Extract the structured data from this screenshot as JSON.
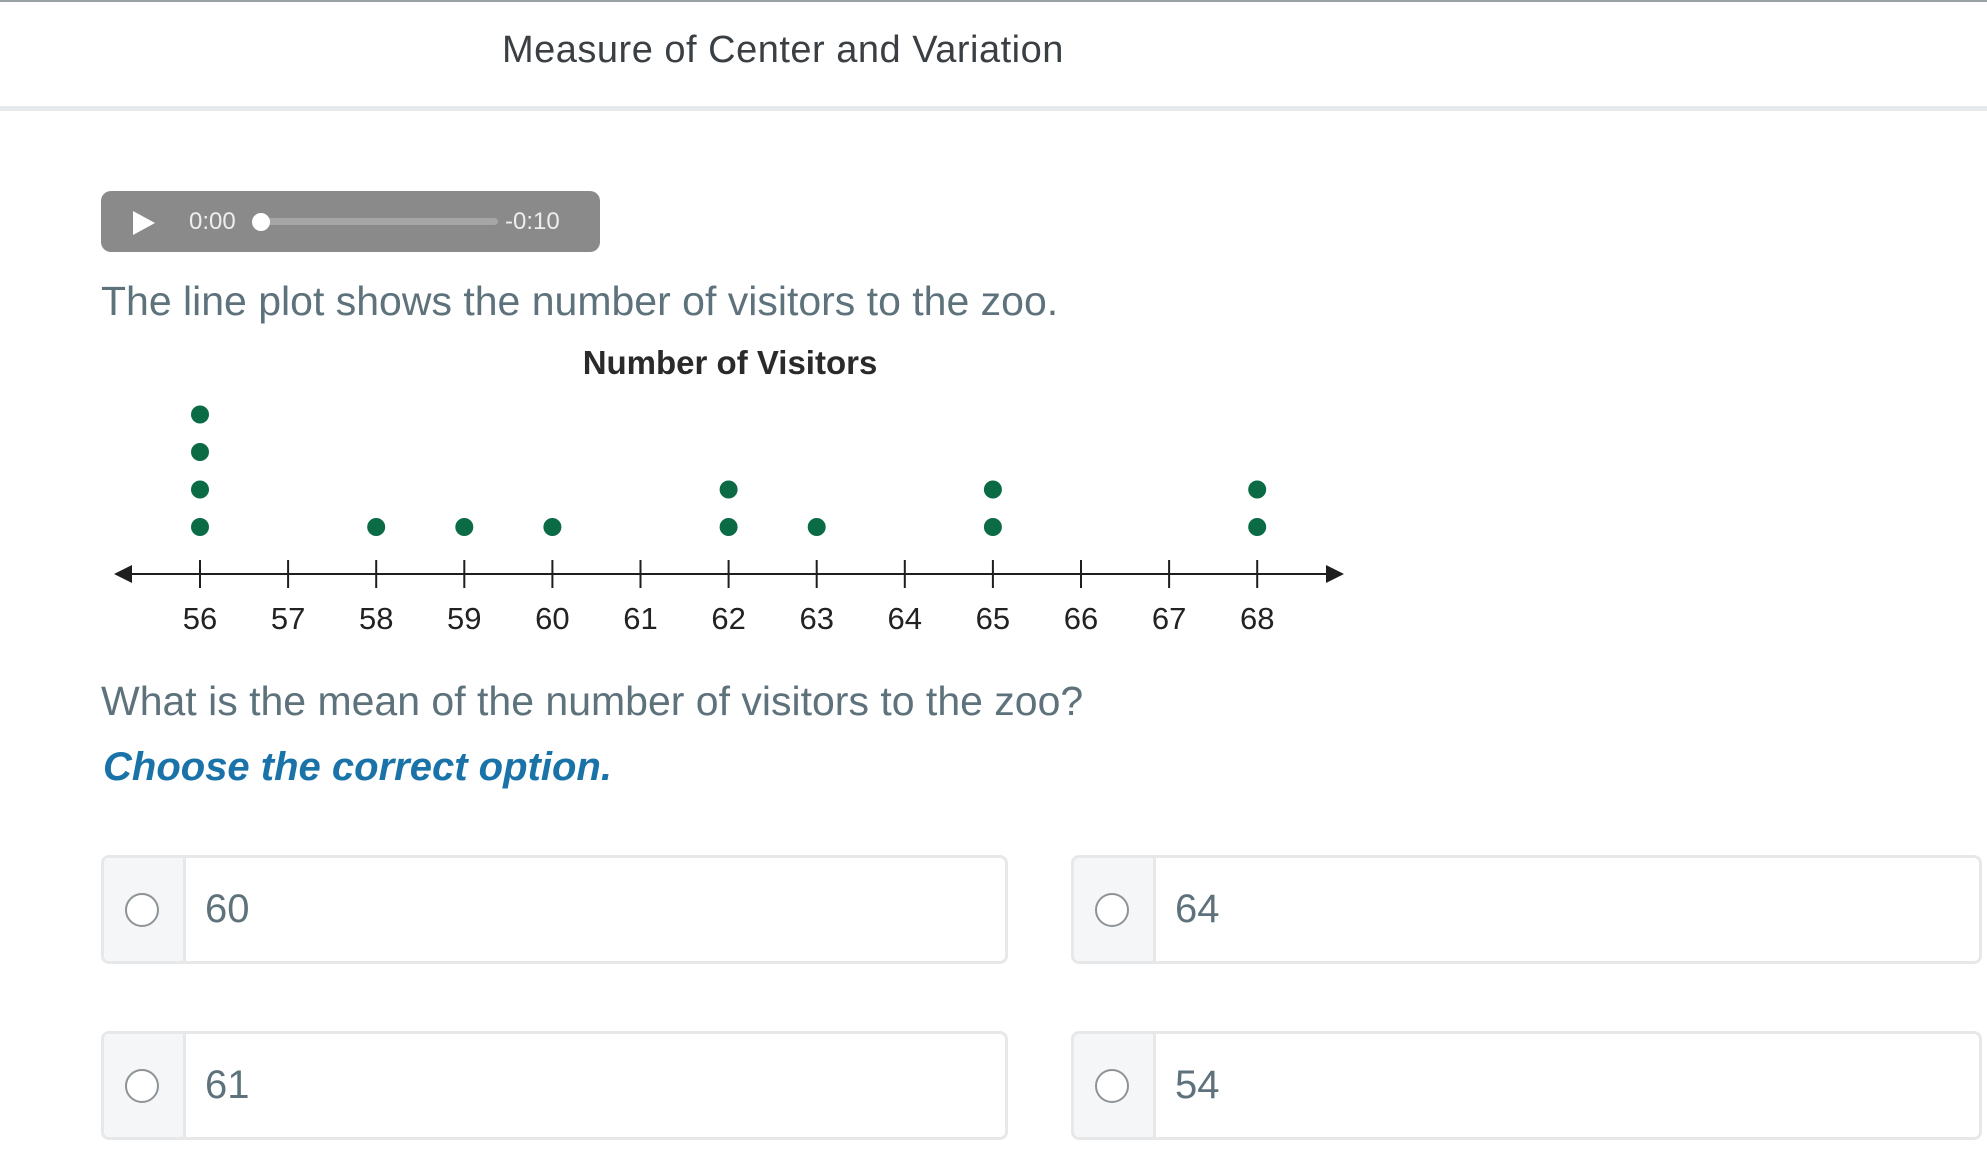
{
  "header": {
    "title": "Measure of Center and Variation"
  },
  "audio": {
    "current_time": "0:00",
    "remaining_time": "-0:10",
    "progress": 0,
    "play_icon": "play-icon"
  },
  "question": {
    "prompt": "The line plot shows the number of visitors to the zoo.",
    "text": "What is the mean of the number of visitors to the zoo?",
    "instruction": "Choose the correct option."
  },
  "options": [
    {
      "label": "60"
    },
    {
      "label": "64"
    },
    {
      "label": "61"
    },
    {
      "label": "54"
    }
  ],
  "colors": {
    "dot": "#0a6b45",
    "instruction": "#1a73a8",
    "text": "#5e727c"
  },
  "chart_data": {
    "type": "scatter",
    "title": "Number of Visitors",
    "categories": [
      "56",
      "57",
      "58",
      "59",
      "60",
      "61",
      "62",
      "63",
      "64",
      "65",
      "66",
      "67",
      "68"
    ],
    "x": [
      56,
      57,
      58,
      59,
      60,
      61,
      62,
      63,
      64,
      65,
      66,
      67,
      68
    ],
    "counts": [
      4,
      0,
      1,
      1,
      1,
      0,
      2,
      1,
      0,
      2,
      0,
      0,
      2
    ],
    "xlim": [
      56,
      68
    ],
    "grid": false,
    "marker": "dot"
  }
}
